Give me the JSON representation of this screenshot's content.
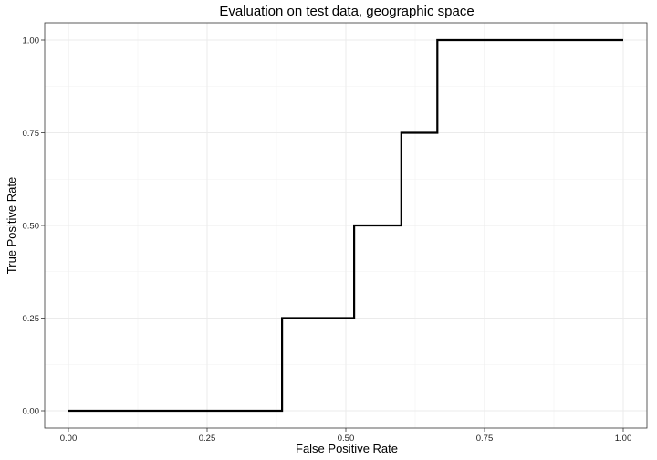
{
  "chart_data": {
    "type": "line",
    "title": "Evaluation on test data, geographic space",
    "xlabel": "False Positive Rate",
    "ylabel": "True Positive Rate",
    "xlim": [
      0,
      1
    ],
    "ylim": [
      0,
      1
    ],
    "x_ticks": [
      0,
      0.25,
      0.5,
      0.75,
      1
    ],
    "x_tick_labels": [
      "0.00",
      "0.25",
      "0.50",
      "0.75",
      "1.00"
    ],
    "y_ticks": [
      0,
      0.25,
      0.5,
      0.75,
      1
    ],
    "y_tick_labels": [
      "0.00",
      "0.25",
      "0.50",
      "0.75",
      "1.00"
    ],
    "grid": true,
    "series": [
      {
        "x": [
          0,
          0.385,
          0.385,
          0.515,
          0.515,
          0.6,
          0.6,
          0.665,
          0.665,
          1
        ],
        "y": [
          0,
          0,
          0.25,
          0.25,
          0.5,
          0.5,
          0.75,
          0.75,
          1,
          1
        ],
        "color": "#000000"
      }
    ]
  }
}
